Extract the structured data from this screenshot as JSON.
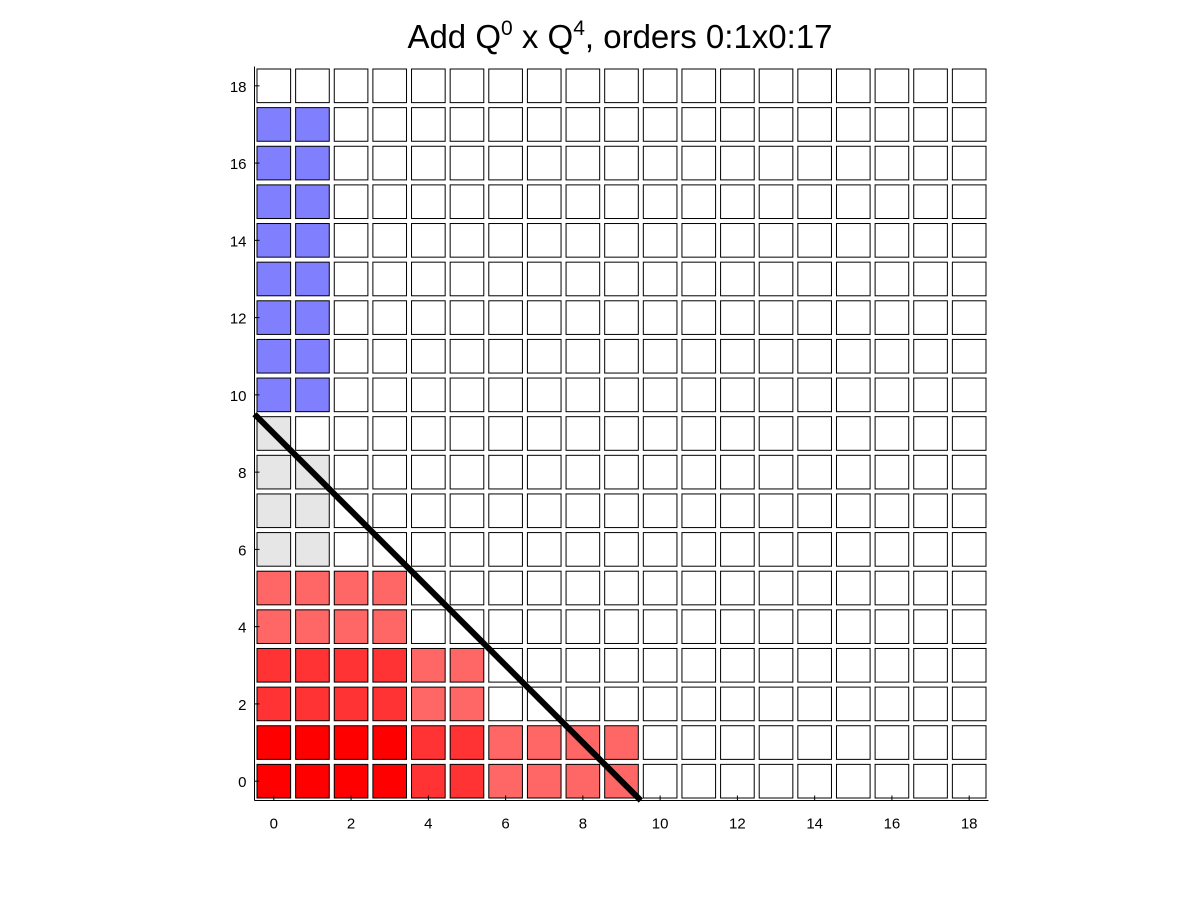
{
  "chart_data": {
    "type": "heatmap",
    "title": {
      "base": "Add Q",
      "sup1": "0",
      "mid": " x Q",
      "sup2": "4",
      "tail": ", orders 0:1x0:17"
    },
    "xlabel": "",
    "ylabel": "",
    "xlim": [
      -0.5,
      18.5
    ],
    "ylim": [
      -0.5,
      18.5
    ],
    "x_ticks": [
      0,
      2,
      4,
      6,
      8,
      10,
      12,
      14,
      16,
      18
    ],
    "y_ticks": [
      0,
      2,
      4,
      6,
      8,
      10,
      12,
      14,
      16,
      18
    ],
    "grid_size": 19,
    "empty_color": "#ffffff",
    "colored_cells": [
      {
        "x": 0,
        "y": 0,
        "color": "#ff0000"
      },
      {
        "x": 1,
        "y": 0,
        "color": "#ff0000"
      },
      {
        "x": 2,
        "y": 0,
        "color": "#ff0000"
      },
      {
        "x": 3,
        "y": 0,
        "color": "#ff0000"
      },
      {
        "x": 4,
        "y": 0,
        "color": "#ff3333"
      },
      {
        "x": 5,
        "y": 0,
        "color": "#ff3333"
      },
      {
        "x": 6,
        "y": 0,
        "color": "#ff6666"
      },
      {
        "x": 7,
        "y": 0,
        "color": "#ff6666"
      },
      {
        "x": 8,
        "y": 0,
        "color": "#ff6666"
      },
      {
        "x": 9,
        "y": 0,
        "color": "#ff6666"
      },
      {
        "x": 0,
        "y": 1,
        "color": "#ff0000"
      },
      {
        "x": 1,
        "y": 1,
        "color": "#ff0000"
      },
      {
        "x": 2,
        "y": 1,
        "color": "#ff0000"
      },
      {
        "x": 3,
        "y": 1,
        "color": "#ff0000"
      },
      {
        "x": 4,
        "y": 1,
        "color": "#ff3333"
      },
      {
        "x": 5,
        "y": 1,
        "color": "#ff3333"
      },
      {
        "x": 6,
        "y": 1,
        "color": "#ff6666"
      },
      {
        "x": 7,
        "y": 1,
        "color": "#ff6666"
      },
      {
        "x": 8,
        "y": 1,
        "color": "#ff6666"
      },
      {
        "x": 9,
        "y": 1,
        "color": "#ff6666"
      },
      {
        "x": 0,
        "y": 2,
        "color": "#ff3333"
      },
      {
        "x": 1,
        "y": 2,
        "color": "#ff3333"
      },
      {
        "x": 2,
        "y": 2,
        "color": "#ff3333"
      },
      {
        "x": 3,
        "y": 2,
        "color": "#ff3333"
      },
      {
        "x": 4,
        "y": 2,
        "color": "#ff6666"
      },
      {
        "x": 5,
        "y": 2,
        "color": "#ff6666"
      },
      {
        "x": 0,
        "y": 3,
        "color": "#ff3333"
      },
      {
        "x": 1,
        "y": 3,
        "color": "#ff3333"
      },
      {
        "x": 2,
        "y": 3,
        "color": "#ff3333"
      },
      {
        "x": 3,
        "y": 3,
        "color": "#ff3333"
      },
      {
        "x": 4,
        "y": 3,
        "color": "#ff6666"
      },
      {
        "x": 5,
        "y": 3,
        "color": "#ff6666"
      },
      {
        "x": 0,
        "y": 4,
        "color": "#ff6666"
      },
      {
        "x": 1,
        "y": 4,
        "color": "#ff6666"
      },
      {
        "x": 2,
        "y": 4,
        "color": "#ff6666"
      },
      {
        "x": 3,
        "y": 4,
        "color": "#ff6666"
      },
      {
        "x": 0,
        "y": 5,
        "color": "#ff6666"
      },
      {
        "x": 1,
        "y": 5,
        "color": "#ff6666"
      },
      {
        "x": 2,
        "y": 5,
        "color": "#ff6666"
      },
      {
        "x": 3,
        "y": 5,
        "color": "#ff6666"
      },
      {
        "x": 0,
        "y": 6,
        "color": "#e6e6e6"
      },
      {
        "x": 1,
        "y": 6,
        "color": "#e6e6e6"
      },
      {
        "x": 0,
        "y": 7,
        "color": "#e6e6e6"
      },
      {
        "x": 1,
        "y": 7,
        "color": "#e6e6e6"
      },
      {
        "x": 0,
        "y": 8,
        "color": "#e6e6e6"
      },
      {
        "x": 1,
        "y": 8,
        "color": "#e6e6e6"
      },
      {
        "x": 0,
        "y": 9,
        "color": "#e6e6e6"
      },
      {
        "x": 0,
        "y": 10,
        "color": "#8080ff"
      },
      {
        "x": 1,
        "y": 10,
        "color": "#8080ff"
      },
      {
        "x": 0,
        "y": 11,
        "color": "#8080ff"
      },
      {
        "x": 1,
        "y": 11,
        "color": "#8080ff"
      },
      {
        "x": 0,
        "y": 12,
        "color": "#8080ff"
      },
      {
        "x": 1,
        "y": 12,
        "color": "#8080ff"
      },
      {
        "x": 0,
        "y": 13,
        "color": "#8080ff"
      },
      {
        "x": 1,
        "y": 13,
        "color": "#8080ff"
      },
      {
        "x": 0,
        "y": 14,
        "color": "#8080ff"
      },
      {
        "x": 1,
        "y": 14,
        "color": "#8080ff"
      },
      {
        "x": 0,
        "y": 15,
        "color": "#8080ff"
      },
      {
        "x": 1,
        "y": 15,
        "color": "#8080ff"
      },
      {
        "x": 0,
        "y": 16,
        "color": "#8080ff"
      },
      {
        "x": 1,
        "y": 16,
        "color": "#8080ff"
      },
      {
        "x": 0,
        "y": 17,
        "color": "#8080ff"
      },
      {
        "x": 1,
        "y": 17,
        "color": "#8080ff"
      }
    ],
    "diagonal_line": {
      "x": [
        -0.5,
        9.5
      ],
      "y": [
        9.5,
        -0.5
      ],
      "color": "#000000"
    }
  }
}
